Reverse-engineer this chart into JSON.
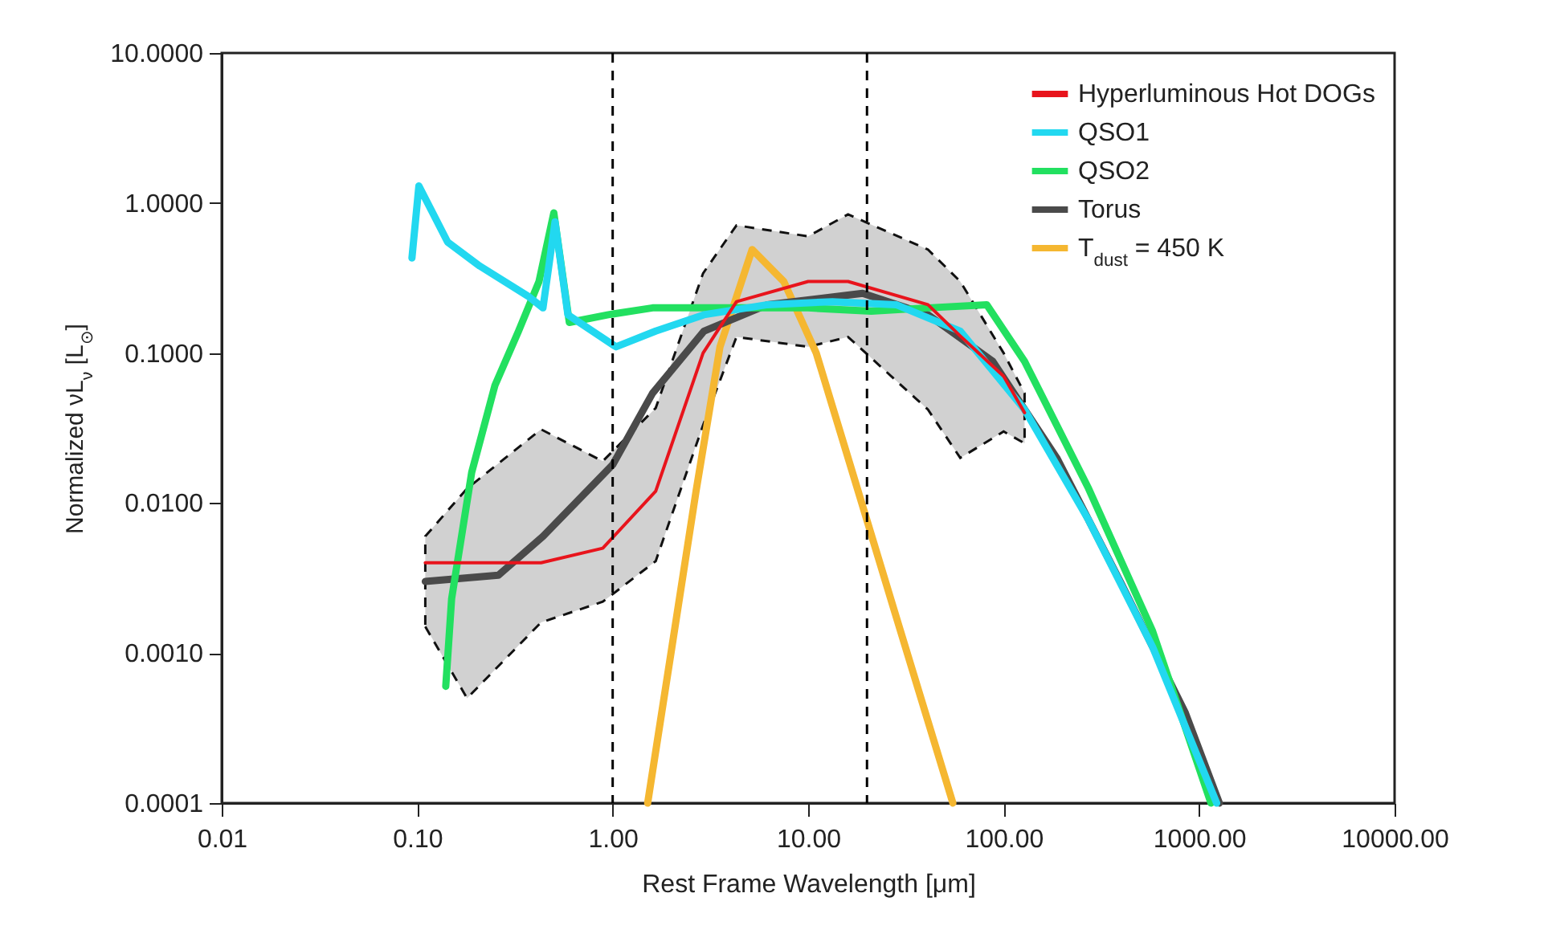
{
  "chart_data": {
    "type": "line",
    "xlabel": "Rest Frame Wavelength [μm]",
    "ylabel": "Normalized νL$_{ν}$ [L$_{⊙}$]",
    "log": "xy",
    "grid": false,
    "legend": "top right",
    "line_style": "solid",
    "xlim": [
      0.01,
      10000
    ],
    "xticks": [
      0.01,
      {
        "value": 0.1,
        "label": "0.10"
      },
      {
        "value": 1,
        "label": "1.00"
      },
      {
        "value": 10,
        "label": "10.00"
      },
      {
        "value": 100,
        "label": "100.00"
      },
      {
        "value": 1000,
        "label": "1000.00"
      },
      {
        "value": 10000,
        "label": "10000.00"
      }
    ],
    "ylim": [
      0.0001,
      10
    ],
    "yticks": [
      {
        "value": 0.0001,
        "label": "0.0001"
      },
      {
        "value": 0.001,
        "label": "0.0010"
      },
      {
        "value": 0.01,
        "label": "0.0100"
      },
      {
        "value": 0.1,
        "label": "0.1000"
      },
      {
        "value": 1,
        "label": "1.0000"
      },
      {
        "value": 10,
        "label": "10.0000"
      }
    ],
    "ref_lines": [
      {
        "axis": "x",
        "value": 1,
        "line_style": "dashed",
        "color": "#000000"
      },
      {
        "axis": "x",
        "value": 20,
        "line_style": "dashed",
        "color": "#000000"
      }
    ],
    "series": [
      {
        "name": "Hyperluminous Hot DOGs",
        "color": "#e8141c",
        "x": [
          0.11,
          0.18,
          0.43,
          0.89,
          1.66,
          2.9,
          4.3,
          10,
          16,
          41,
          60,
          100,
          128
        ],
        "values": [
          0.004,
          0.004,
          0.004,
          0.005,
          0.012,
          0.1,
          0.22,
          0.3,
          0.3,
          0.21,
          0.13,
          0.07,
          0.04
        ],
        "lower": [
          0.0015,
          0.0005,
          0.0016,
          0.0022,
          0.0041,
          0.033,
          0.128,
          0.11,
          0.128,
          0.042,
          0.02,
          0.03,
          0.025
        ],
        "upper": [
          0.006,
          0.0125,
          0.031,
          0.019,
          0.043,
          0.34,
          0.71,
          0.6,
          0.84,
          0.49,
          0.3,
          0.1,
          0.054
        ]
      },
      {
        "name": "QSO1",
        "color": "#22d8f0",
        "x": [
          0.094,
          0.102,
          0.143,
          0.209,
          0.368,
          0.44,
          0.507,
          0.59,
          1.04,
          1.66,
          2.93,
          6.2,
          13.3,
          28.2,
          60,
          128,
          272,
          578,
          1230
        ],
        "values": [
          0.43,
          1.3,
          0.55,
          0.38,
          0.24,
          0.2,
          0.75,
          0.18,
          0.11,
          0.14,
          0.18,
          0.21,
          0.22,
          0.21,
          0.14,
          0.042,
          0.0077,
          0.0011,
          0.0001
        ]
      },
      {
        "name": "QSO2",
        "color": "#22e060",
        "x": [
          0.14,
          0.15,
          0.19,
          0.25,
          0.33,
          0.42,
          0.5,
          0.6,
          0.95,
          1.6,
          2.93,
          10,
          21,
          41,
          82,
          128,
          272,
          578,
          1150
        ],
        "values": [
          0.0006,
          0.0023,
          0.016,
          0.061,
          0.14,
          0.3,
          0.86,
          0.16,
          0.18,
          0.2,
          0.2,
          0.2,
          0.19,
          0.2,
          0.21,
          0.088,
          0.0125,
          0.0014,
          0.0001
        ]
      },
      {
        "name": "Torus",
        "color": "#4a4a4a",
        "x": [
          0.11,
          0.26,
          0.44,
          1.0,
          1.6,
          2.93,
          6.2,
          19,
          41,
          88,
          187,
          400,
          850,
          1270
        ],
        "values": [
          0.003,
          0.0033,
          0.006,
          0.018,
          0.054,
          0.14,
          0.21,
          0.25,
          0.18,
          0.088,
          0.02,
          0.0029,
          0.0004,
          0.0001
        ]
      },
      {
        "name": "T$_{dust}$ = 450 K",
        "color": "#f5b731",
        "x": [
          1.51,
          2.01,
          2.67,
          3.54,
          5.17,
          7.5,
          11,
          16,
          28,
          55
        ],
        "values": [
          0.0001,
          0.0011,
          0.012,
          0.11,
          0.49,
          0.3,
          0.1,
          0.02,
          0.0018,
          0.0001
        ]
      }
    ]
  }
}
